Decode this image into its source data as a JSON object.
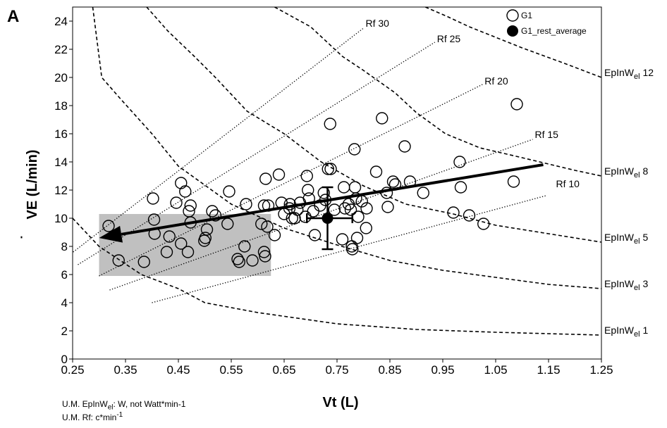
{
  "chart_data": {
    "type": "scatter",
    "panel_label": "A",
    "xlabel": "Vt  (L)",
    "ylabel_dot": "˙",
    "ylabel": "VE (L/min)",
    "xlim": [
      0.25,
      1.25
    ],
    "ylim": [
      0,
      25
    ],
    "x_ticks": [
      0.25,
      0.35,
      0.45,
      0.55,
      0.65,
      0.75,
      0.85,
      0.95,
      1.05,
      1.15,
      1.25
    ],
    "x_tick_labels": [
      "0.25",
      "0.35",
      "0.45",
      "0.55",
      "0.65",
      "0.75",
      "0.85",
      "0.95",
      "1.05",
      "1.15",
      "1.25"
    ],
    "y_ticks": [
      0,
      2,
      4,
      6,
      8,
      10,
      12,
      14,
      16,
      18,
      20,
      22,
      24
    ],
    "y_tick_labels": [
      "0",
      "2",
      "4",
      "6",
      "8",
      "10",
      "12",
      "14",
      "16",
      "18",
      "20",
      "22",
      "24"
    ],
    "grid": false,
    "legend_position": "top-right",
    "legend": [
      {
        "label": "G1",
        "marker": "open-circle"
      },
      {
        "label": "G1_rest_average",
        "marker": "filled-circle"
      }
    ],
    "series": [
      {
        "name": "G1",
        "marker": "open-circle",
        "points": [
          [
            0.318,
            9.45
          ],
          [
            0.337,
            7.0
          ],
          [
            0.385,
            6.9
          ],
          [
            0.402,
            11.4
          ],
          [
            0.405,
            8.9
          ],
          [
            0.404,
            9.9
          ],
          [
            0.428,
            7.6
          ],
          [
            0.433,
            8.7
          ],
          [
            0.446,
            11.1
          ],
          [
            0.455,
            12.5
          ],
          [
            0.455,
            8.2
          ],
          [
            0.463,
            11.9
          ],
          [
            0.468,
            7.6
          ],
          [
            0.47,
            10.5
          ],
          [
            0.473,
            10.9
          ],
          [
            0.473,
            9.7
          ],
          [
            0.499,
            8.4
          ],
          [
            0.501,
            8.6
          ],
          [
            0.504,
            9.2
          ],
          [
            0.514,
            10.5
          ],
          [
            0.52,
            10.2
          ],
          [
            0.543,
            9.6
          ],
          [
            0.546,
            11.9
          ],
          [
            0.562,
            7.1
          ],
          [
            0.565,
            6.9
          ],
          [
            0.575,
            8.0
          ],
          [
            0.578,
            11.0
          ],
          [
            0.59,
            7.0
          ],
          [
            0.607,
            9.6
          ],
          [
            0.612,
            7.6
          ],
          [
            0.612,
            10.9
          ],
          [
            0.614,
            7.3
          ],
          [
            0.615,
            12.8
          ],
          [
            0.618,
            9.4
          ],
          [
            0.62,
            10.9
          ],
          [
            0.632,
            8.8
          ],
          [
            0.64,
            13.1
          ],
          [
            0.645,
            11.1
          ],
          [
            0.65,
            10.3
          ],
          [
            0.66,
            10.7
          ],
          [
            0.661,
            11.0
          ],
          [
            0.665,
            10.0
          ],
          [
            0.67,
            10.0
          ],
          [
            0.675,
            10.6
          ],
          [
            0.68,
            11.1
          ],
          [
            0.69,
            10.1
          ],
          [
            0.693,
            13.0
          ],
          [
            0.695,
            12.0
          ],
          [
            0.697,
            11.4
          ],
          [
            0.705,
            10.5
          ],
          [
            0.708,
            8.8
          ],
          [
            0.718,
            10.9
          ],
          [
            0.725,
            11.8
          ],
          [
            0.728,
            11.3
          ],
          [
            0.733,
            13.5
          ],
          [
            0.737,
            16.7
          ],
          [
            0.738,
            13.5
          ],
          [
            0.745,
            10.6
          ],
          [
            0.76,
            8.5
          ],
          [
            0.763,
            12.2
          ],
          [
            0.765,
            10.7
          ],
          [
            0.772,
            11.0
          ],
          [
            0.776,
            10.6
          ],
          [
            0.778,
            8.0
          ],
          [
            0.779,
            7.8
          ],
          [
            0.783,
            14.9
          ],
          [
            0.784,
            12.2
          ],
          [
            0.786,
            11.4
          ],
          [
            0.788,
            8.6
          ],
          [
            0.79,
            10.1
          ],
          [
            0.797,
            11.2
          ],
          [
            0.805,
            9.3
          ],
          [
            0.806,
            10.7
          ],
          [
            0.824,
            13.3
          ],
          [
            0.835,
            17.1
          ],
          [
            0.844,
            11.8
          ],
          [
            0.846,
            10.8
          ],
          [
            0.856,
            12.6
          ],
          [
            0.86,
            12.4
          ],
          [
            0.878,
            15.1
          ],
          [
            0.888,
            12.6
          ],
          [
            0.913,
            11.8
          ],
          [
            0.97,
            10.4
          ],
          [
            0.982,
            14.0
          ],
          [
            0.984,
            12.2
          ],
          [
            1.0,
            10.2
          ],
          [
            1.027,
            9.6
          ],
          [
            1.084,
            12.6
          ],
          [
            1.09,
            18.1
          ]
        ]
      },
      {
        "name": "G1_rest_average",
        "marker": "filled-circle",
        "points": [
          [
            0.732,
            10.0
          ]
        ],
        "error_x": [
          0.693,
          0.779
        ],
        "error_y": [
          7.8,
          12.2
        ]
      }
    ],
    "shaded_region": {
      "x": [
        0.3,
        0.625
      ],
      "y": [
        5.9,
        10.3
      ],
      "color": "#c0c0c0"
    },
    "trend_arrow": {
      "from": [
        1.14,
        13.8
      ],
      "to": [
        0.3,
        8.6
      ]
    },
    "rf_lines": [
      {
        "label": "Rf 30",
        "from": [
          0.251,
          7.6
        ],
        "to": [
          0.8,
          23.5
        ],
        "label_at": [
          0.8,
          23.4
        ]
      },
      {
        "label": "Rf 25",
        "from": [
          0.26,
          6.7
        ],
        "to": [
          0.935,
          22.5
        ],
        "label_at": [
          0.935,
          22.3
        ]
      },
      {
        "label": "Rf 20",
        "from": [
          0.3,
          5.9
        ],
        "to": [
          1.025,
          19.5
        ],
        "label_at": [
          1.025,
          19.3
        ]
      },
      {
        "label": "Rf 15",
        "from": [
          0.32,
          4.9
        ],
        "to": [
          1.12,
          15.6
        ],
        "label_at": [
          1.12,
          15.5
        ]
      },
      {
        "label": "Rf 10",
        "from": [
          0.4,
          4.0
        ],
        "to": [
          1.145,
          11.6
        ],
        "label_at": [
          1.16,
          12.0
        ]
      }
    ],
    "iso_work_lines": [
      {
        "base": "EpInW",
        "sub": "el",
        "value": "12",
        "points": [
          [
            0.917,
            25.0
          ],
          [
            0.96,
            24.3
          ],
          [
            1.0,
            23.6
          ],
          [
            1.1,
            22.1
          ],
          [
            1.18,
            21.0
          ],
          [
            1.25,
            20.0
          ]
        ]
      },
      {
        "base": "EpInW",
        "sub": "el",
        "value": "8",
        "points": [
          [
            0.632,
            25.0
          ],
          [
            0.7,
            23.6
          ],
          [
            0.76,
            21.5
          ],
          [
            0.8,
            20.5
          ],
          [
            0.86,
            18.9
          ],
          [
            0.9,
            17.5
          ],
          [
            0.955,
            16.0
          ],
          [
            1.02,
            15.0
          ],
          [
            1.1,
            14.3
          ],
          [
            1.2,
            13.4
          ],
          [
            1.25,
            13.0
          ]
        ]
      },
      {
        "base": "EpInW",
        "sub": "el",
        "value": "5",
        "points": [
          [
            0.39,
            25.0
          ],
          [
            0.43,
            23.3
          ],
          [
            0.48,
            21.5
          ],
          [
            0.52,
            20.0
          ],
          [
            0.58,
            17.6
          ],
          [
            0.65,
            16.0
          ],
          [
            0.72,
            14.0
          ],
          [
            0.8,
            12.3
          ],
          [
            0.88,
            11.0
          ],
          [
            0.97,
            10.3
          ],
          [
            1.05,
            9.5
          ],
          [
            1.15,
            8.9
          ],
          [
            1.25,
            8.3
          ]
        ]
      },
      {
        "base": "EpInW",
        "sub": "el",
        "value": "3",
        "points": [
          [
            0.288,
            25.0
          ],
          [
            0.305,
            20.0
          ],
          [
            0.34,
            18.5
          ],
          [
            0.4,
            16.0
          ],
          [
            0.45,
            13.7
          ],
          [
            0.55,
            11.0
          ],
          [
            0.65,
            9.3
          ],
          [
            0.75,
            8.1
          ],
          [
            0.85,
            7.0
          ],
          [
            0.95,
            6.3
          ],
          [
            1.05,
            5.8
          ],
          [
            1.15,
            5.3
          ],
          [
            1.25,
            5.0
          ]
        ]
      },
      {
        "base": "EpInW",
        "sub": "el",
        "value": "1",
        "points": [
          [
            0.25,
            10.0
          ],
          [
            0.3,
            8.0
          ],
          [
            0.38,
            6.0
          ],
          [
            0.45,
            5.0
          ],
          [
            0.5,
            4.0
          ],
          [
            0.6,
            3.3
          ],
          [
            0.75,
            2.5
          ],
          [
            0.9,
            2.1
          ],
          [
            1.05,
            1.9
          ],
          [
            1.15,
            1.8
          ],
          [
            1.25,
            1.7
          ]
        ]
      }
    ]
  },
  "notes": {
    "um_epinw_prefix": "U.M. EpInW",
    "um_epinw_sub": "el",
    "um_epinw_suffix": ":  W, not Watt*min-1",
    "um_rf_prefix": "U.M. Rf: c*min",
    "um_rf_sup": "-1"
  }
}
